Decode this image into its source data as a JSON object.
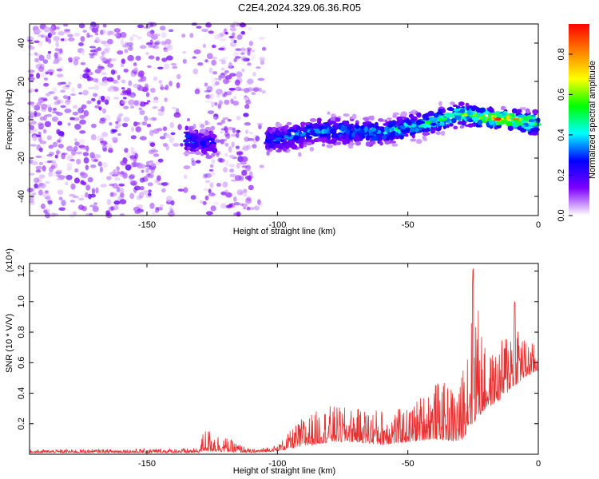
{
  "chart_data": [
    {
      "type": "heatmap",
      "title": "C2E4.2024.329.06.36.R05",
      "xlabel": "Height of straight line (km)",
      "ylabel": "Frequency (Hz)",
      "xlim": [
        -195,
        0
      ],
      "ylim": [
        -50,
        50
      ],
      "xticks": [
        "-150",
        "-100",
        "-50",
        "0"
      ],
      "yticks": [
        "40",
        "20",
        "0",
        "-20",
        "-40"
      ],
      "colorbar": {
        "label": "Normalized spectral amplitude",
        "range": [
          0.0,
          0.95
        ],
        "ticks": [
          "0.0",
          "0.2",
          "0.4",
          "0.6",
          "0.8"
        ],
        "colormap": [
          "#ffffff",
          "#7f00ff",
          "#0000ff",
          "#00ffff",
          "#00ff00",
          "#ffff00",
          "#ff8000",
          "#ff0000"
        ]
      },
      "trend": [
        {
          "x": -135,
          "y": -10,
          "amp": 0.35
        },
        {
          "x": -128,
          "y": -12,
          "amp": 0.3
        },
        {
          "x": -100,
          "y": -10,
          "amp": 0.35
        },
        {
          "x": -85,
          "y": -6,
          "amp": 0.4
        },
        {
          "x": -70,
          "y": -6,
          "amp": 0.4
        },
        {
          "x": -60,
          "y": -7,
          "amp": 0.45
        },
        {
          "x": -50,
          "y": -4,
          "amp": 0.5
        },
        {
          "x": -40,
          "y": -1,
          "amp": 0.55
        },
        {
          "x": -30,
          "y": 3,
          "amp": 0.6
        },
        {
          "x": -20,
          "y": 1,
          "amp": 0.9
        },
        {
          "x": -10,
          "y": 0,
          "amp": 0.9
        },
        {
          "x": 0,
          "y": -2,
          "amp": 0.6
        }
      ],
      "grid": false
    },
    {
      "type": "line",
      "xlabel": "Height of straight line (km)",
      "ylabel": "SNR (10 * V/V)",
      "yscale_label": "(x10⁴)",
      "xlim": [
        -195,
        0
      ],
      "ylim": [
        0,
        1.25
      ],
      "xticks": [
        "-150",
        "-100",
        "-50",
        "0"
      ],
      "yticks": [
        "0.2",
        "0.4",
        "0.6",
        "0.8",
        "1.0",
        "1.2"
      ],
      "color": "#e83030",
      "series_envelope": [
        {
          "x": -195,
          "base": 0.01,
          "peak": 0.03
        },
        {
          "x": -130,
          "base": 0.01,
          "peak": 0.04
        },
        {
          "x": -128,
          "base": 0.02,
          "peak": 0.18
        },
        {
          "x": -110,
          "base": 0.01,
          "peak": 0.03
        },
        {
          "x": -100,
          "base": 0.02,
          "peak": 0.06
        },
        {
          "x": -90,
          "base": 0.05,
          "peak": 0.25
        },
        {
          "x": -80,
          "base": 0.08,
          "peak": 0.32
        },
        {
          "x": -70,
          "base": 0.08,
          "peak": 0.3
        },
        {
          "x": -60,
          "base": 0.06,
          "peak": 0.3
        },
        {
          "x": -50,
          "base": 0.08,
          "peak": 0.3
        },
        {
          "x": -40,
          "base": 0.1,
          "peak": 0.48
        },
        {
          "x": -30,
          "base": 0.08,
          "peak": 0.45
        },
        {
          "x": -25,
          "base": 0.2,
          "peak": 1.22
        },
        {
          "x": -20,
          "base": 0.3,
          "peak": 0.65
        },
        {
          "x": -15,
          "base": 0.35,
          "peak": 0.7
        },
        {
          "x": -9,
          "base": 0.45,
          "peak": 1.0
        },
        {
          "x": -5,
          "base": 0.5,
          "peak": 0.75
        },
        {
          "x": 0,
          "base": 0.55,
          "peak": 0.72
        }
      ],
      "grid": false
    }
  ]
}
